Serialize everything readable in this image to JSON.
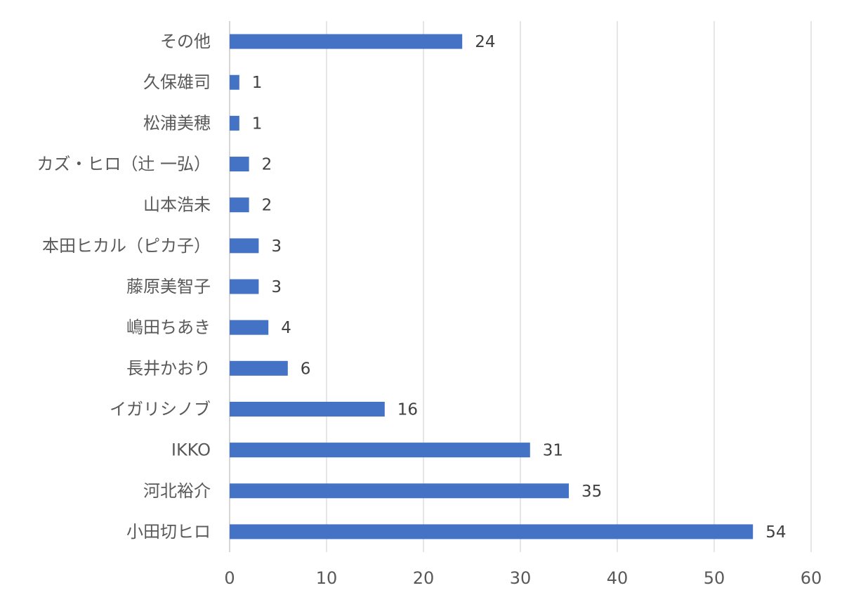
{
  "chart_data": {
    "type": "bar",
    "orientation": "horizontal",
    "categories": [
      "小田切ヒロ",
      "河北裕介",
      "IKKO",
      "イガリシノブ",
      "長井かおり",
      "嶋田ちあき",
      "藤原美智子",
      "本田ヒカル（ピカ子）",
      "山本浩未",
      "カズ・ヒロ（辻 一弘）",
      "松浦美穂",
      "久保雄司",
      "その他"
    ],
    "values": [
      54,
      35,
      31,
      16,
      6,
      4,
      3,
      3,
      2,
      2,
      1,
      1,
      24
    ],
    "xlim": [
      0,
      60
    ],
    "xticks": [
      0,
      10,
      20,
      30,
      40,
      50,
      60
    ],
    "grid": "vertical",
    "legend": "none",
    "data_labels": true,
    "bar_color": "#4472c4"
  }
}
